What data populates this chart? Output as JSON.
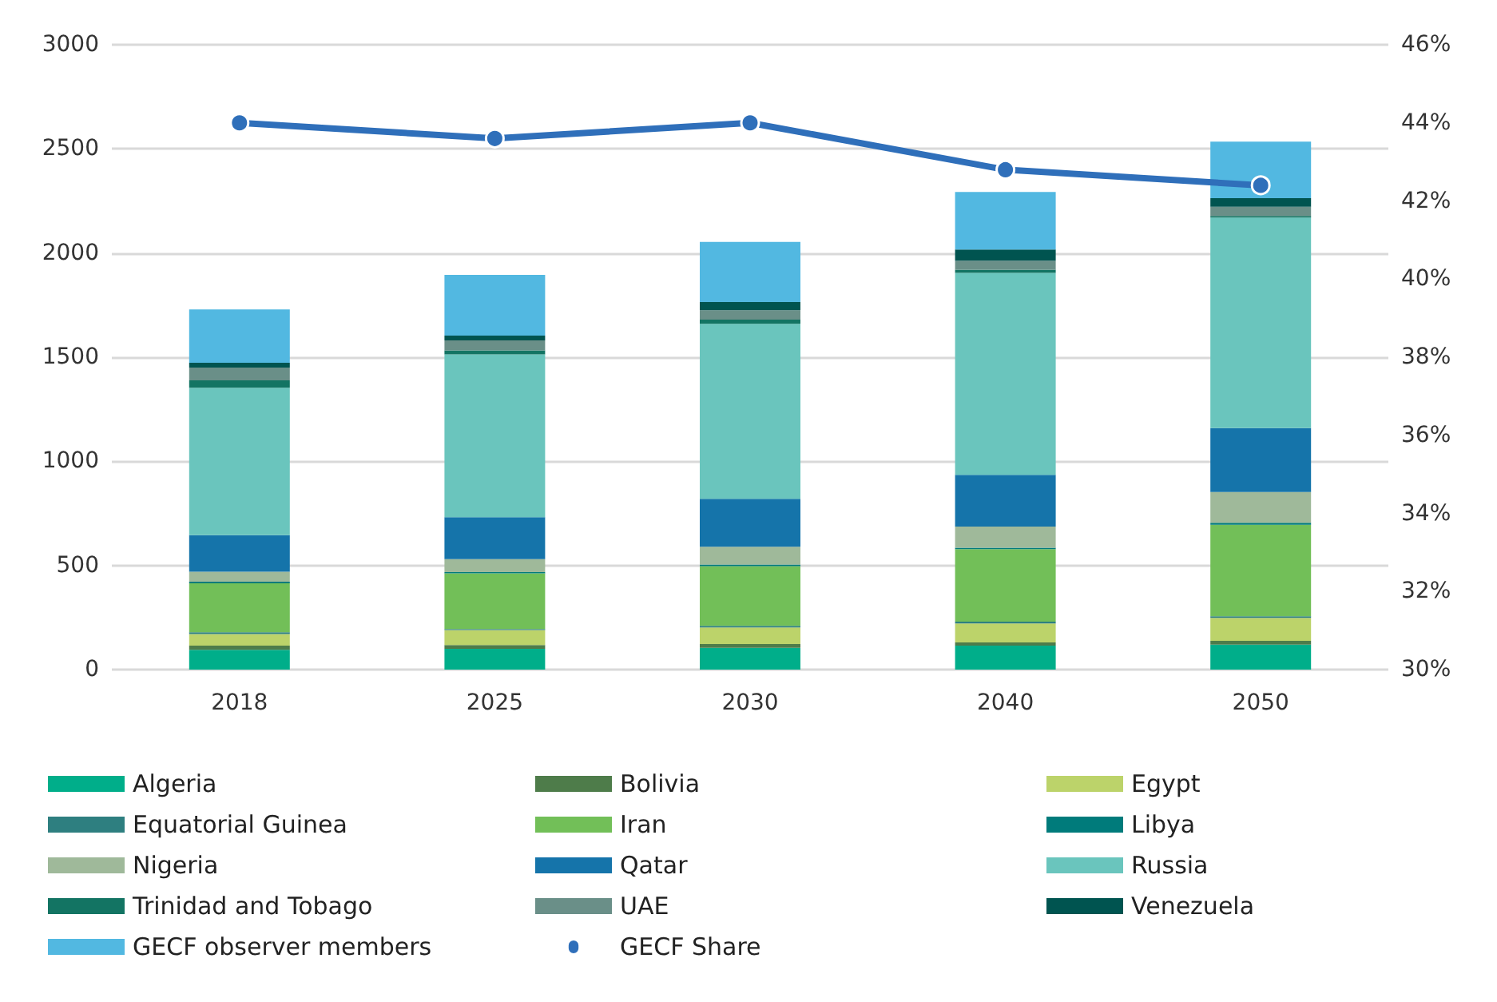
{
  "chart_data": {
    "type": "bar",
    "stacked": true,
    "categories": [
      "2018",
      "2025",
      "2030",
      "2040",
      "2050"
    ],
    "series": [
      {
        "name": "Algeria",
        "color": "#00ae8a",
        "values": [
          95,
          100,
          105,
          115,
          120
        ]
      },
      {
        "name": "Bolivia",
        "color": "#4e7c4a",
        "values": [
          20,
          18,
          18,
          15,
          18
        ]
      },
      {
        "name": "Egypt",
        "color": "#bcd36a",
        "values": [
          56,
          72,
          79,
          92,
          110
        ]
      },
      {
        "name": "Equatorial Guinea",
        "color": "#2e7f80",
        "values": [
          8,
          5,
          8,
          8,
          8
        ]
      },
      {
        "name": "Iran",
        "color": "#72bf58",
        "values": [
          235,
          267,
          287,
          348,
          439
        ]
      },
      {
        "name": "Libya",
        "color": "#007b7b",
        "values": [
          8,
          6,
          7,
          7,
          10
        ]
      },
      {
        "name": "Nigeria",
        "color": "#9fb99a",
        "values": [
          48,
          62,
          86,
          102,
          148
        ]
      },
      {
        "name": "Qatar",
        "color": "#1574aa",
        "values": [
          175,
          202,
          230,
          248,
          307
        ]
      },
      {
        "name": "Russia",
        "color": "#6ac5bd",
        "values": [
          708,
          781,
          840,
          970,
          1010
        ]
      },
      {
        "name": "Trinidad and Tobago",
        "color": "#137463",
        "values": [
          36,
          20,
          20,
          15,
          8
        ]
      },
      {
        "name": "UAE",
        "color": "#6a8f88",
        "values": [
          61,
          48,
          45,
          43,
          44
        ]
      },
      {
        "name": "Venezuela",
        "color": "#005450",
        "values": [
          23,
          23,
          40,
          54,
          41
        ]
      },
      {
        "name": "GECF observer members",
        "color": "#52b8e1",
        "values": [
          256,
          291,
          288,
          276,
          272
        ]
      },
      {
        "name": "GECF Share",
        "type": "line",
        "axis": "y2",
        "color": "#2f6fba",
        "values": [
          44.0,
          43.6,
          44.0,
          42.8,
          42.4
        ]
      }
    ],
    "ylim": [
      0,
      3000
    ],
    "yticks": [
      0,
      500,
      1000,
      1500,
      2000,
      2500,
      3000
    ],
    "y2lim": [
      30,
      46
    ],
    "y2ticks": [
      {
        "value": 30,
        "label": "30%"
      },
      {
        "value": 32,
        "label": "32%"
      },
      {
        "value": 34,
        "label": "34%"
      },
      {
        "value": 36,
        "label": "36%"
      },
      {
        "value": 38,
        "label": "38%"
      },
      {
        "value": 40,
        "label": "40%"
      },
      {
        "value": 42,
        "label": "42%"
      },
      {
        "value": 44,
        "label": "44%"
      },
      {
        "value": 46,
        "label": "46%"
      }
    ],
    "grid": "y",
    "legend": "bottom",
    "marker": "circle",
    "line_style": "solid"
  }
}
